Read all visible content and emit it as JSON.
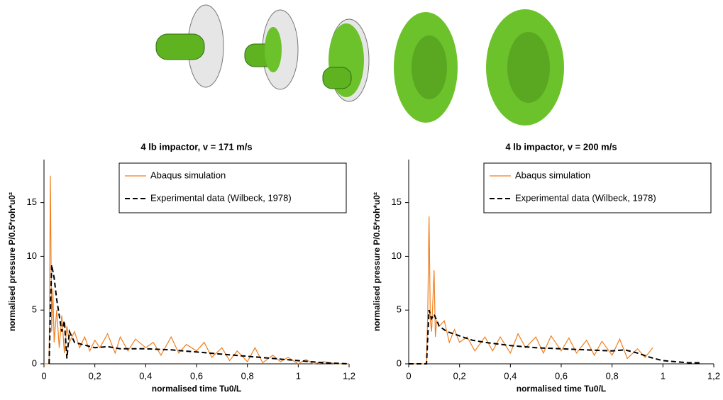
{
  "chart_data": [
    {
      "type": "line",
      "title": "4 lb impactor, v = 171 m/s",
      "x_label": "normalised time Tu0/L",
      "y_label": "normalised pressure P/0.5*roh*u0²",
      "xlim": [
        0,
        1.2
      ],
      "ylim": [
        0,
        19
      ],
      "xticks": [
        0,
        {
          "value": 0.2,
          "label": "0,2"
        },
        {
          "value": 0.4,
          "label": "0,4"
        },
        {
          "value": 0.6,
          "label": "0,6"
        },
        {
          "value": 0.8,
          "label": "0,8"
        },
        1,
        {
          "value": 1.2,
          "label": "1,2"
        }
      ],
      "yticks": [
        0,
        5,
        10,
        15
      ],
      "grid": false,
      "legend": "top-right",
      "series": [
        {
          "name": "Abaqus simulation",
          "color": "#f07f1e",
          "dash": false,
          "x": [
            0,
            0.02,
            0.025,
            0.03,
            0.035,
            0.04,
            0.05,
            0.06,
            0.07,
            0.08,
            0.09,
            0.1,
            0.12,
            0.14,
            0.16,
            0.18,
            0.2,
            0.22,
            0.25,
            0.28,
            0.3,
            0.33,
            0.36,
            0.4,
            0.43,
            0.46,
            0.5,
            0.53,
            0.56,
            0.6,
            0.63,
            0.66,
            0.7,
            0.73,
            0.76,
            0.8,
            0.83,
            0.86,
            0.9,
            0.93,
            0.96,
            1.0,
            1.03,
            1.06,
            1.1,
            1.15,
            1.2
          ],
          "values": [
            0,
            0,
            17.5,
            3,
            7,
            2,
            5,
            1.5,
            4.5,
            1,
            3.5,
            2,
            3,
            1.5,
            2.5,
            1.2,
            2.2,
            1.5,
            2.8,
            1,
            2.5,
            1.2,
            2.3,
            1.5,
            2,
            0.8,
            2.5,
            1,
            1.8,
            1.2,
            2,
            0.6,
            1.5,
            0.3,
            1.2,
            0.2,
            1.5,
            0.1,
            0.8,
            0.2,
            0.6,
            0,
            0.4,
            0,
            0.2,
            0,
            0
          ]
        },
        {
          "name": "Experimental data (Wilbeck, 1978)",
          "color": "#000000",
          "dash": true,
          "x": [
            0.02,
            0.03,
            0.04,
            0.05,
            0.06,
            0.07,
            0.08,
            0.09,
            0.1,
            0.12,
            0.15,
            0.2,
            0.25,
            0.3,
            0.4,
            0.5,
            0.6,
            0.7,
            0.8,
            0.9,
            1.0,
            1.1,
            1.2
          ],
          "values": [
            0,
            9.2,
            8,
            6,
            4.5,
            3,
            4,
            0.5,
            3,
            2,
            1.8,
            1.5,
            1.6,
            1.4,
            1.4,
            1.3,
            1.1,
            0.9,
            0.7,
            0.5,
            0.3,
            0.1,
            0
          ]
        }
      ]
    },
    {
      "type": "line",
      "title": "4 lb impactor, v = 200 m/s",
      "x_label": "normalised time Tu0/L",
      "y_label": "normalised pressure P/0.5*roh*u0²",
      "xlim": [
        0,
        1.2
      ],
      "ylim": [
        0,
        19
      ],
      "xticks": [
        0,
        {
          "value": 0.2,
          "label": "0,2"
        },
        {
          "value": 0.4,
          "label": "0,4"
        },
        {
          "value": 0.6,
          "label": "0,6"
        },
        {
          "value": 0.8,
          "label": "0,8"
        },
        1,
        {
          "value": 1.2,
          "label": "1,2"
        }
      ],
      "yticks": [
        0,
        5,
        10,
        15
      ],
      "grid": false,
      "legend": "top-right",
      "series": [
        {
          "name": "Abaqus simulation",
          "color": "#f07f1e",
          "dash": false,
          "x": [
            0,
            0.07,
            0.075,
            0.08,
            0.085,
            0.09,
            0.1,
            0.105,
            0.11,
            0.12,
            0.14,
            0.16,
            0.18,
            0.2,
            0.23,
            0.26,
            0.3,
            0.33,
            0.36,
            0.4,
            0.43,
            0.46,
            0.5,
            0.53,
            0.56,
            0.6,
            0.63,
            0.66,
            0.7,
            0.73,
            0.76,
            0.8,
            0.83,
            0.86,
            0.9,
            0.93,
            0.96
          ],
          "values": [
            0,
            0,
            5,
            13.7,
            4,
            3,
            8.7,
            2.5,
            4,
            3.5,
            4,
            2,
            3.2,
            2,
            2.5,
            1.2,
            2.5,
            1.2,
            2.5,
            1,
            2.8,
            1.5,
            2.5,
            1,
            2.6,
            1.2,
            2.4,
            1,
            2.2,
            0.8,
            2.1,
            0.8,
            2.3,
            0.5,
            1.4,
            0.6,
            1.5
          ]
        },
        {
          "name": "Experimental data (Wilbeck, 1978)",
          "color": "#000000",
          "dash": true,
          "x": [
            0,
            0.07,
            0.08,
            0.09,
            0.1,
            0.12,
            0.15,
            0.2,
            0.25,
            0.3,
            0.4,
            0.5,
            0.6,
            0.7,
            0.8,
            0.85,
            0.9,
            0.95,
            1.0,
            1.05,
            1.1,
            1.15
          ],
          "values": [
            0,
            0,
            5,
            4.2,
            4.6,
            3.5,
            3,
            2.6,
            2.2,
            2,
            1.7,
            1.5,
            1.4,
            1.3,
            1.2,
            1.3,
            1.0,
            0.6,
            0.3,
            0.2,
            0.1,
            0.1
          ]
        }
      ]
    }
  ]
}
